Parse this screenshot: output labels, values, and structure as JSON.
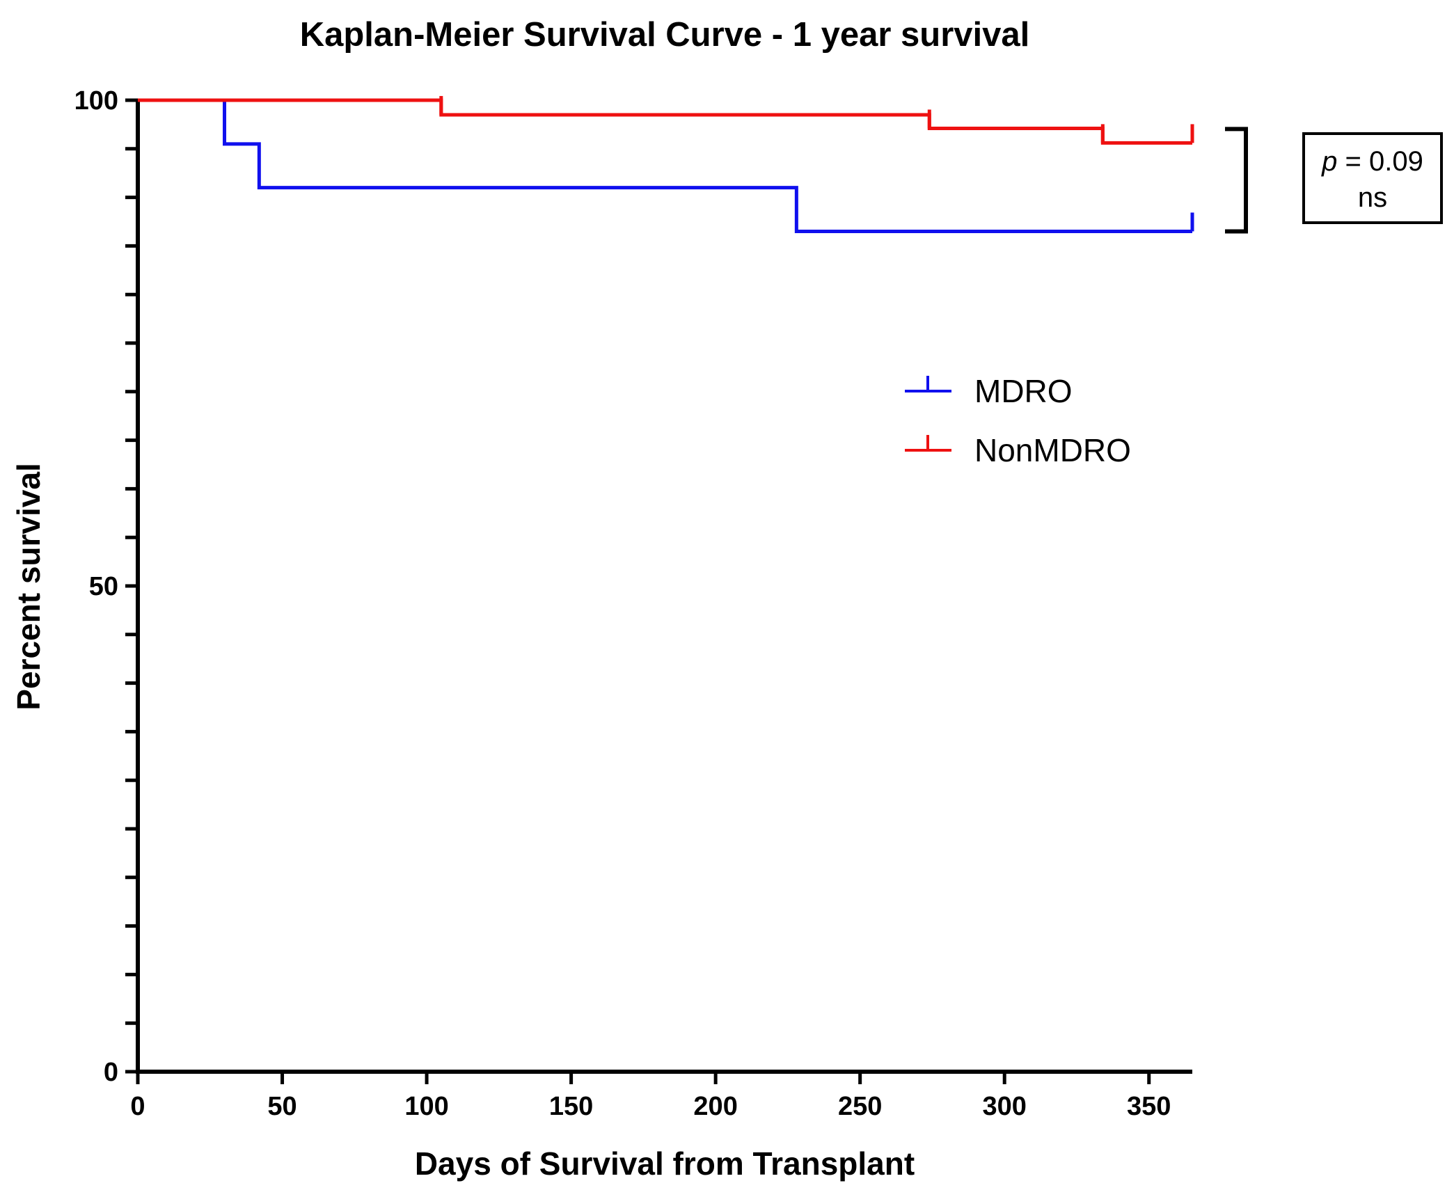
{
  "chart_data": {
    "type": "line",
    "subtype": "kaplan-meier-step",
    "title": "Kaplan-Meier Survival Curve - 1 year survival",
    "xlabel": "Days of Survival from Transplant",
    "ylabel": "Percent survival",
    "xlim": [
      0,
      365
    ],
    "ylim": [
      0,
      100
    ],
    "x_ticks": [
      0,
      50,
      100,
      150,
      200,
      250,
      300,
      350
    ],
    "y_tick_labels": [
      0,
      50,
      100
    ],
    "y_minor_step": 5,
    "grid": false,
    "legend_position": "center-right",
    "series": [
      {
        "name": "MDRO",
        "color": "#1010ee",
        "steps": [
          [
            0,
            100
          ],
          [
            30,
            95.5
          ],
          [
            42,
            91
          ],
          [
            228,
            86.5
          ],
          [
            365,
            86.5
          ]
        ],
        "censored": [
          [
            365,
            86.5
          ]
        ]
      },
      {
        "name": "NonMDRO",
        "color": "#ee1111",
        "steps": [
          [
            0,
            100
          ],
          [
            105,
            98.5
          ],
          [
            274,
            97.1
          ],
          [
            334,
            95.6
          ],
          [
            365,
            95.6
          ]
        ],
        "censored": [
          [
            105,
            98.5
          ],
          [
            274,
            97.1
          ],
          [
            334,
            95.6
          ],
          [
            365,
            95.6
          ]
        ]
      }
    ],
    "annotation": {
      "p_symbol": "p",
      "p_rest": " = 0.09",
      "significance": "ns",
      "bracket_between": [
        "NonMDRO",
        "MDRO"
      ]
    }
  }
}
